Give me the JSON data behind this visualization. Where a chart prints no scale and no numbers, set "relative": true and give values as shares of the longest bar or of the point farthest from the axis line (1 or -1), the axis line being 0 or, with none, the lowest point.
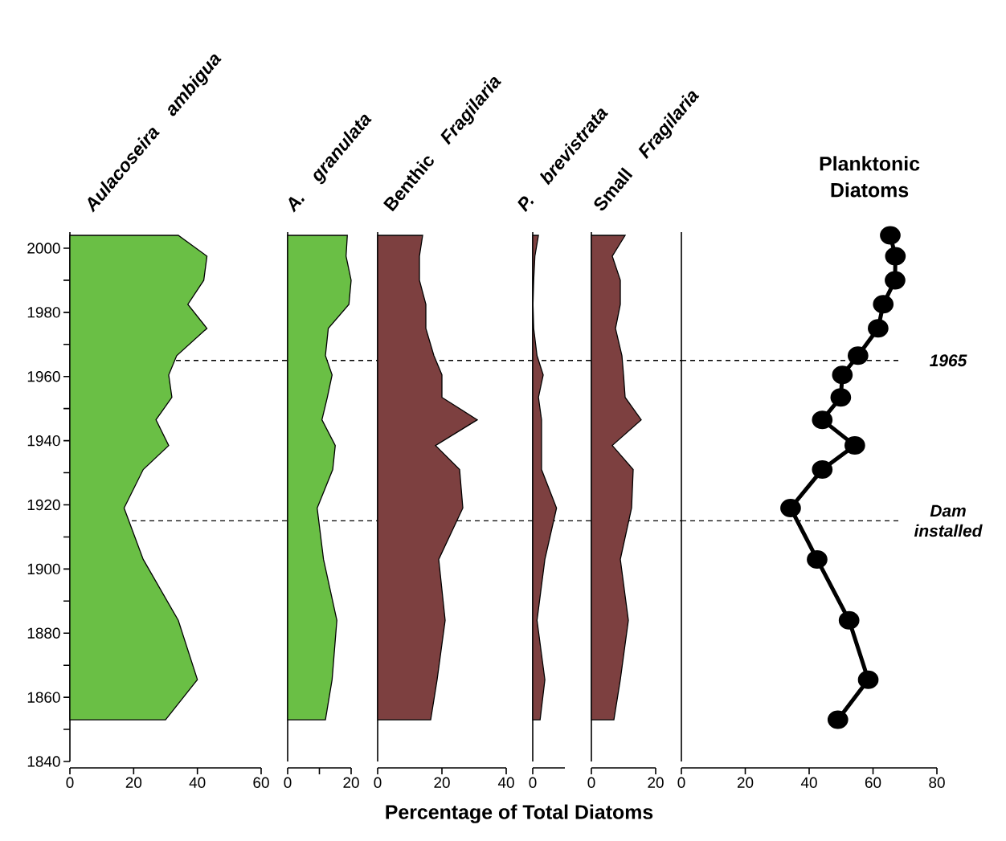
{
  "chart_data": [
    {
      "type": "area",
      "orientation": "horizontal",
      "title": "Aulacoseira ambigua",
      "x": [
        2004,
        1997.5,
        1990,
        1982.5,
        1975,
        1966.5,
        1960.5,
        1953.5,
        1946.5,
        1938.5,
        1931,
        1919,
        1903,
        1884,
        1865.5,
        1853
      ],
      "series": [
        {
          "color": "#6abf45",
          "values": [
            34,
            43,
            42,
            37,
            43,
            33.5,
            31,
            32,
            27,
            31,
            23,
            17,
            23,
            34,
            40,
            30
          ]
        }
      ],
      "xlim": [
        0,
        60
      ],
      "xticks": [
        0,
        20,
        40,
        60
      ],
      "ylim": [
        1840,
        2005
      ],
      "yticks": [
        1840,
        {
          "value": 1850,
          "label": null
        },
        1860,
        {
          "value": 1870,
          "label": null
        },
        1880,
        {
          "value": 1890,
          "label": null
        },
        1900,
        {
          "value": 1910,
          "label": null
        },
        1920,
        {
          "value": 1930,
          "label": null
        },
        1940,
        {
          "value": 1950,
          "label": null
        },
        1960,
        {
          "value": 1970,
          "label": null
        },
        1980,
        {
          "value": 1990,
          "label": null
        },
        2000
      ],
      "ref_lines": [
        {
          "axis": "y",
          "value": 1965,
          "line_style": "dashed"
        },
        {
          "axis": "y",
          "value": 1915,
          "line_style": "dashed"
        }
      ]
    },
    {
      "type": "area",
      "orientation": "horizontal",
      "title": "A. granulata",
      "x": [
        2004,
        1997.5,
        1990,
        1982.5,
        1975,
        1966.5,
        1960.5,
        1953.5,
        1946.5,
        1938.5,
        1931,
        1919,
        1903,
        1884,
        1865.5,
        1853
      ],
      "series": [
        {
          "color": "#6abf45",
          "values": [
            18.8,
            18.4,
            20,
            19.3,
            12.8,
            11.9,
            14,
            12.5,
            10.8,
            15,
            14.2,
            9.3,
            11.3,
            15.5,
            14,
            11.9
          ]
        }
      ],
      "xlim": [
        0,
        20
      ],
      "xticks": [
        0,
        {
          "value": 10,
          "label": null
        },
        20
      ],
      "ylim": [
        1840,
        2005
      ],
      "tick_labels": "x",
      "ref_lines": [
        {
          "axis": "y",
          "value": 1965,
          "line_style": "dashed"
        },
        {
          "axis": "y",
          "value": 1915,
          "line_style": "dashed"
        }
      ]
    },
    {
      "type": "area",
      "orientation": "horizontal",
      "title": "Benthic *Fragilaria*",
      "x": [
        2004,
        1997.5,
        1990,
        1982.5,
        1975,
        1966.5,
        1960.5,
        1953.5,
        1946.5,
        1938.5,
        1931,
        1919,
        1903,
        1884,
        1865.5,
        1853
      ],
      "series": [
        {
          "color": "#7d4040",
          "values": [
            14,
            13,
            13,
            15,
            15,
            17.5,
            20,
            20,
            31,
            18,
            25.5,
            26.5,
            19,
            21,
            18.5,
            16.5
          ]
        }
      ],
      "xlim": [
        0,
        40
      ],
      "xticks": [
        0,
        20,
        40
      ],
      "ylim": [
        1840,
        2005
      ],
      "tick_labels": "x",
      "ref_lines": [
        {
          "axis": "y",
          "value": 1965,
          "line_style": "dashed"
        },
        {
          "axis": "y",
          "value": 1915,
          "line_style": "dashed"
        }
      ]
    },
    {
      "type": "area",
      "orientation": "horizontal",
      "relative": true,
      "title": "P. brevistrata",
      "xlabel": "Percentage of Total Diatoms",
      "annotations": [
        "0"
      ],
      "x": [
        2004,
        1997.5,
        1990,
        1982.5,
        1975,
        1966.5,
        1960.5,
        1953.5,
        1946.5,
        1938.5,
        1931,
        1919,
        1903,
        1884,
        1865.5,
        1853
      ],
      "series": [
        {
          "color": "#7d4040",
          "values": [
            0.24,
            0.09,
            0.04,
            0.01,
            0.04,
            0.18,
            0.44,
            0.24,
            0.37,
            0.37,
            0.37,
            1,
            0.51,
            0.18,
            0.51,
            0.31
          ]
        }
      ],
      "ylim": [
        1840,
        2005
      ],
      "tick_labels": "x",
      "ref_lines": [
        {
          "axis": "y",
          "value": 1965,
          "line_style": "dashed"
        },
        {
          "axis": "y",
          "value": 1915,
          "line_style": "dashed"
        }
      ]
    },
    {
      "type": "area",
      "orientation": "horizontal",
      "title": "Small *Fragilaria*",
      "x": [
        2004,
        1997.5,
        1990,
        1982.5,
        1975,
        1966.5,
        1960.5,
        1953.5,
        1946.5,
        1938.5,
        1931,
        1919,
        1903,
        1884,
        1865.5,
        1853
      ],
      "series": [
        {
          "color": "#7d4040",
          "values": [
            10.5,
            6.5,
            9,
            9,
            7.5,
            9.5,
            10,
            10.5,
            15.5,
            6.5,
            13,
            12.5,
            9,
            11.5,
            9,
            7
          ]
        }
      ],
      "xlim": [
        0,
        20
      ],
      "xticks": [
        0,
        20
      ],
      "ylim": [
        1840,
        2005
      ],
      "tick_labels": "x",
      "ref_lines": [
        {
          "axis": "y",
          "value": 1965,
          "line_style": "dashed"
        },
        {
          "axis": "y",
          "value": 1915,
          "line_style": "dashed"
        }
      ]
    },
    {
      "type": "line",
      "orientation": "horizontal",
      "title": "Planktonic Diatoms",
      "marker": "circle",
      "x": [
        2004,
        1997.5,
        1990,
        1982.5,
        1975,
        1966.5,
        1960.5,
        1953.5,
        1946.5,
        1938.5,
        1931,
        1919,
        1903,
        1884,
        1865.5,
        1853
      ],
      "series": [
        {
          "color": "#000000",
          "values": [
            65.4,
            67,
            66.9,
            63.2,
            61.6,
            55.3,
            50.4,
            49.9,
            44.1,
            54.3,
            44.1,
            34.2,
            42.5,
            52.5,
            58.5,
            49
          ]
        }
      ],
      "xlim": [
        0,
        80
      ],
      "xticks": [
        0,
        20,
        40,
        60,
        80
      ],
      "ylim": [
        1840,
        2005
      ],
      "tick_labels": "x",
      "ref_lines": [
        {
          "axis": "y",
          "value": 1965,
          "label": "1965",
          "line_style": "dashed"
        },
        {
          "axis": "y",
          "value": 1915,
          "label": "Dam installed",
          "line_style": "dashed"
        }
      ]
    }
  ]
}
